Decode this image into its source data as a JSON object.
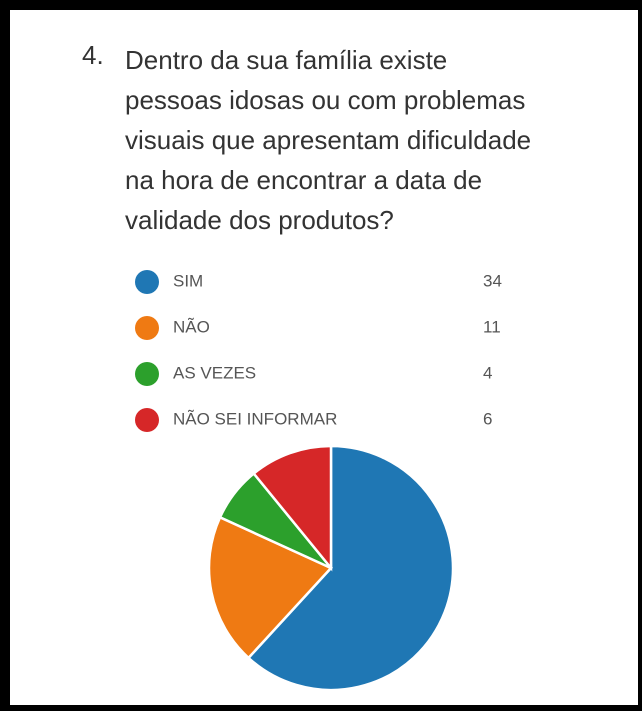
{
  "chart_data": {
    "type": "pie",
    "question_number": "4.",
    "title_lines": [
      "Dentro da sua família existe",
      "pessoas idosas ou com problemas",
      "visuais que apresentam dificuldade",
      "na hora de encontrar a data de",
      "validade dos produtos?"
    ],
    "categories": [
      "SIM",
      "NÃO",
      "AS VEZES",
      "NÃO SEI INFORMAR"
    ],
    "values": [
      34,
      11,
      4,
      6
    ],
    "colors": [
      "#1f77b4",
      "#ef7a13",
      "#2ca02c",
      "#d62728"
    ],
    "start_angle": "top",
    "direction": "clockwise"
  }
}
